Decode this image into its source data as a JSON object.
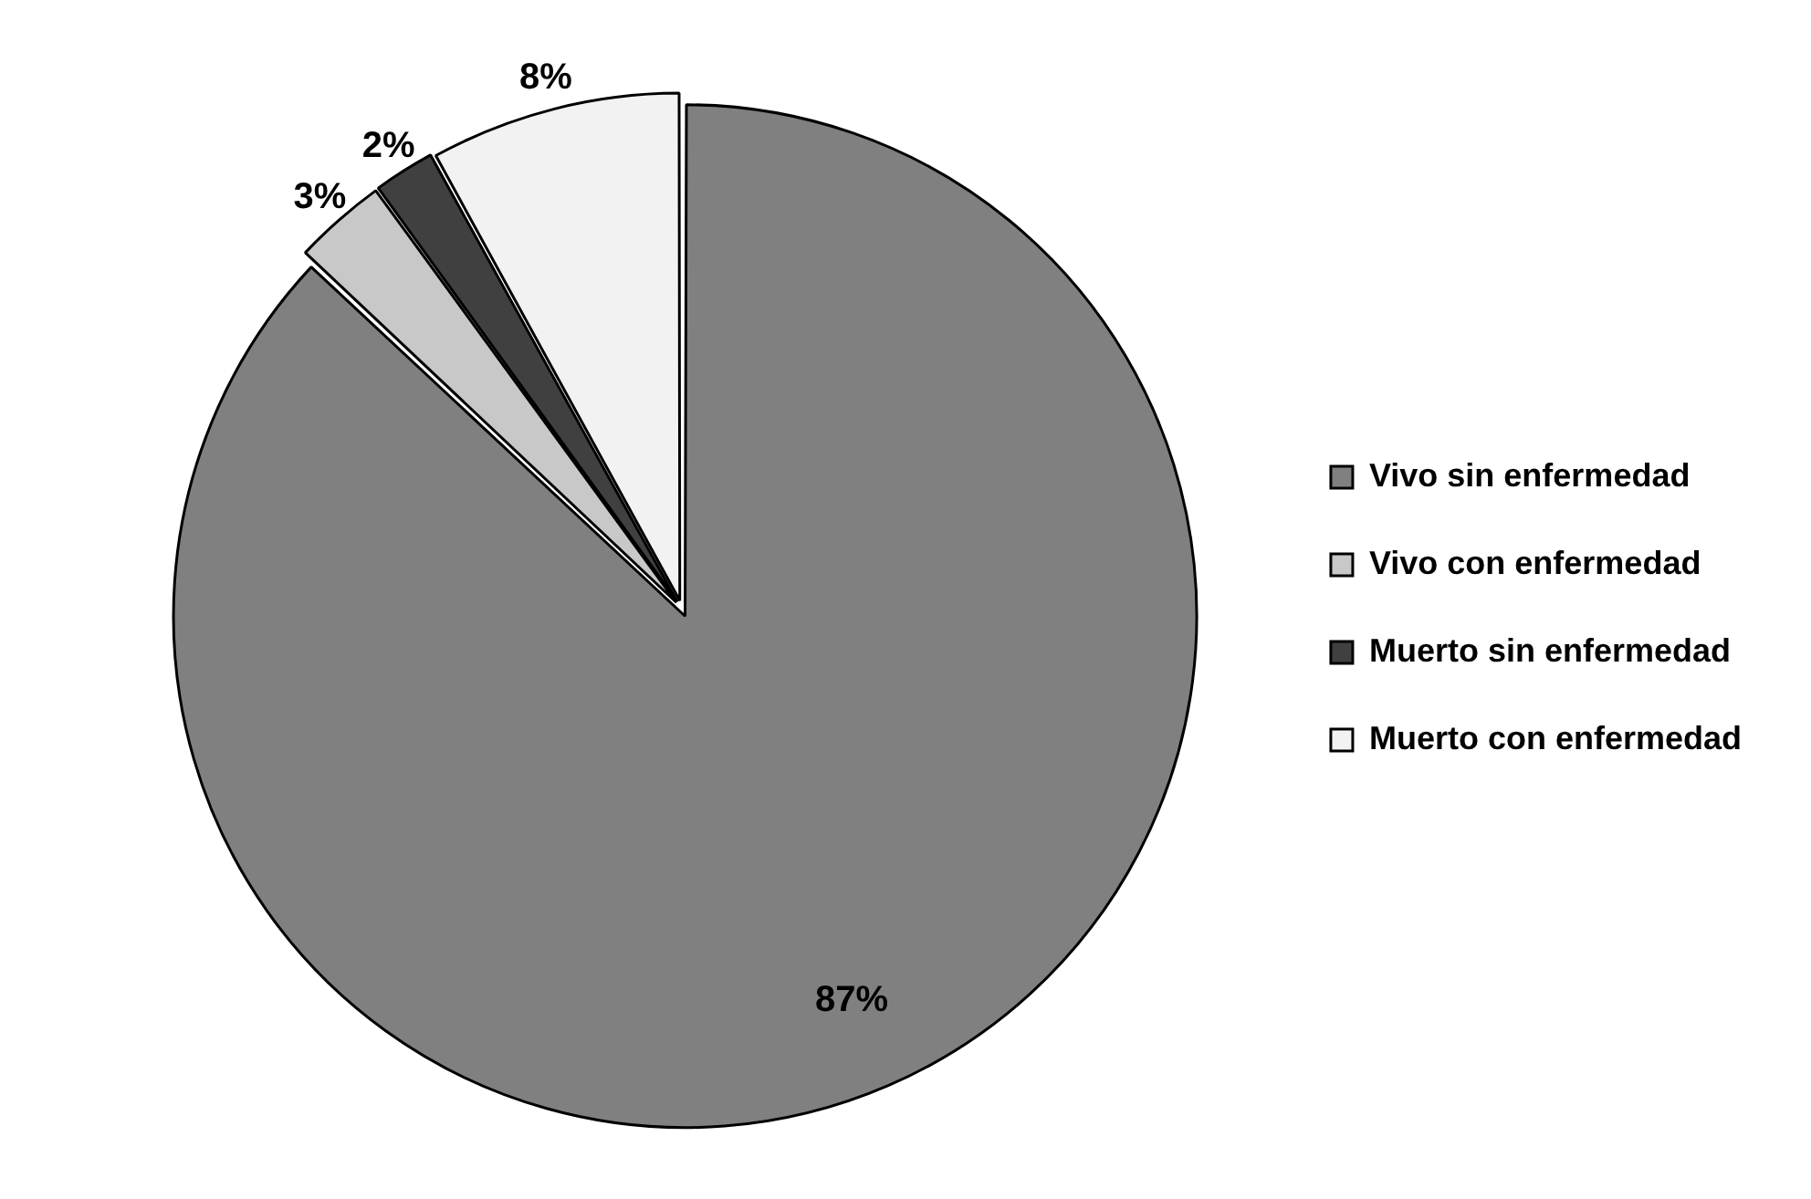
{
  "chart_data": {
    "type": "pie",
    "categories": [
      "Vivo sin enfermedad",
      "Vivo con enfermedad",
      "Muerto sin enfermedad",
      "Muerto con enfermedad"
    ],
    "values": [
      87,
      3,
      2,
      8
    ],
    "colors": [
      "#808080",
      "#c8c8c8",
      "#404040",
      "#f2f2f2"
    ],
    "value_labels": [
      "87%",
      "3%",
      "2%",
      "8%"
    ],
    "legend": "right"
  }
}
